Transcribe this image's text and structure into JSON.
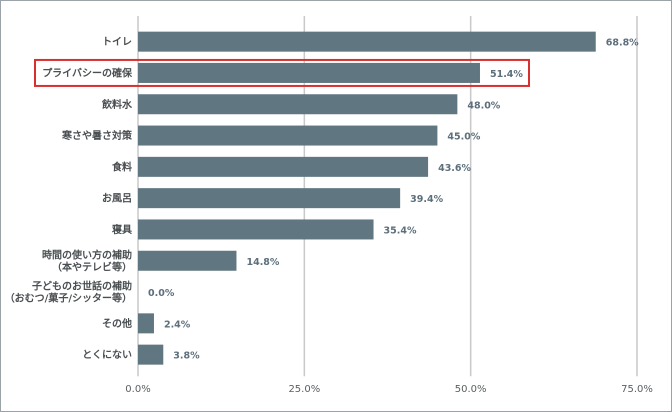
{
  "chart_data": {
    "type": "bar",
    "orientation": "horizontal",
    "categories": [
      [
        "トイレ"
      ],
      [
        "プライバシーの確保"
      ],
      [
        "飲料水"
      ],
      [
        "寒さや暑さ対策"
      ],
      [
        "食料"
      ],
      [
        "お風呂"
      ],
      [
        "寝具"
      ],
      [
        "時間の使い方の補助",
        "（本やテレビ等）"
      ],
      [
        "子どものお世話の補助",
        "（おむつ/菓子/シッター等）"
      ],
      [
        "その他"
      ],
      [
        "とくにない"
      ]
    ],
    "values": [
      68.8,
      51.4,
      48.0,
      45.0,
      43.6,
      39.4,
      35.4,
      14.8,
      0.0,
      2.4,
      3.8
    ],
    "value_labels": [
      "68.8%",
      "51.4%",
      "48.0%",
      "45.0%",
      "43.6%",
      "39.4%",
      "35.4%",
      "14.8%",
      "0.0%",
      "2.4%",
      "3.8%"
    ],
    "xlim": [
      0,
      75
    ],
    "xticks": [
      0,
      25,
      50,
      75
    ],
    "xtick_labels": [
      "0.0%",
      "25.0%",
      "50.0%",
      "75.0%"
    ],
    "highlighted_index": 1,
    "grid": true,
    "colors": {
      "bar": "#607680",
      "gridline": "#c9c9c9",
      "highlight": "#d9302f"
    }
  }
}
